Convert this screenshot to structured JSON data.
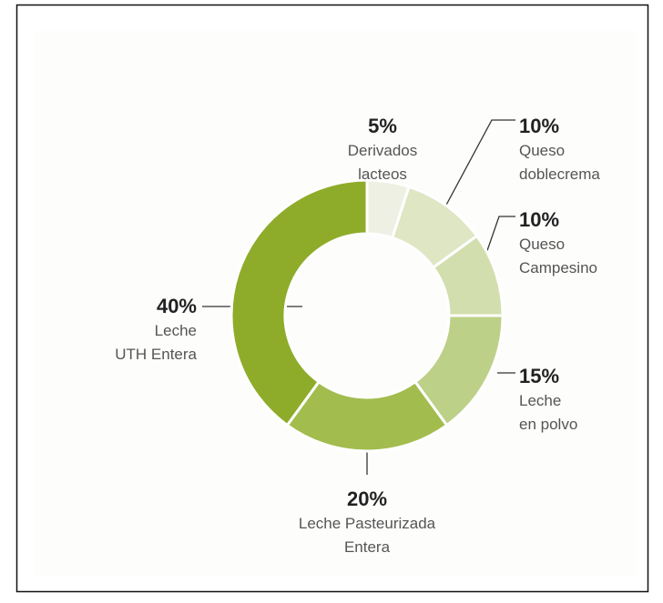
{
  "chart_data": {
    "type": "donut",
    "categories": [
      [
        "Derivados",
        "lacteos"
      ],
      [
        "Queso",
        "doblecrema"
      ],
      [
        "Queso",
        "Campesino"
      ],
      [
        "Leche",
        "en polvo"
      ],
      [
        "Leche Pasteurizada",
        "Entera"
      ],
      [
        "Leche",
        "UTH Entera"
      ]
    ],
    "values": [
      5,
      10,
      10,
      15,
      20,
      40
    ],
    "value_labels": [
      "5%",
      "10%",
      "10%",
      "15%",
      "20%",
      "40%"
    ],
    "colors": [
      "#eef0e4",
      "#dfe6c4",
      "#d2dead",
      "#bdd088",
      "#a2bc4e",
      "#8eac2a"
    ]
  }
}
